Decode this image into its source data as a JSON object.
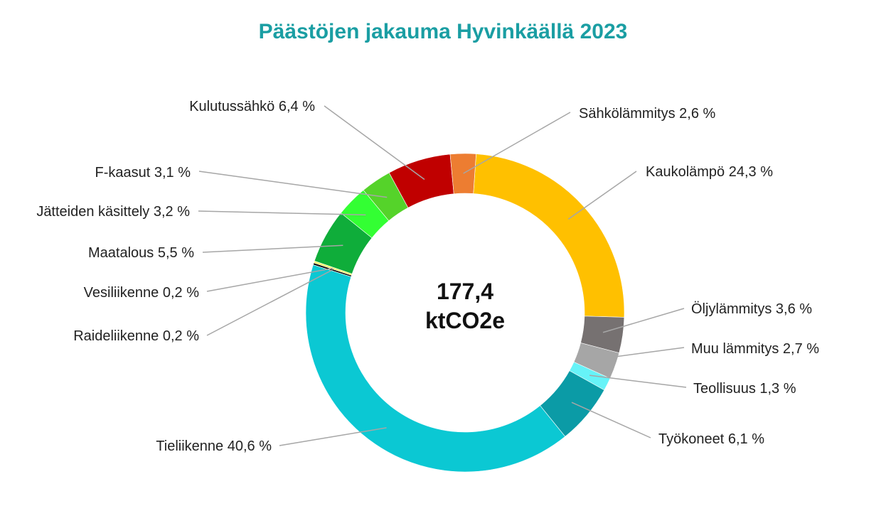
{
  "chart_data": {
    "type": "pie",
    "variant": "donut",
    "title": "Päästöjen jakauma Hyvinkäällä 2023",
    "center_text": [
      "177,4",
      "ktCO2e"
    ],
    "unit": "%",
    "slices": [
      {
        "name": "Kaukolämpö",
        "value": 24.3,
        "label": "Kaukolämpö 24,3 %",
        "color": "#ffc000"
      },
      {
        "name": "Öljylämmitys",
        "value": 3.6,
        "label": "Öljylämmitys 3,6 %",
        "color": "#767171"
      },
      {
        "name": "Muu lämmitys",
        "value": 2.7,
        "label": "Muu lämmitys 2,7 %",
        "color": "#a6a6a6"
      },
      {
        "name": "Teollisuus",
        "value": 1.3,
        "label": "Teollisuus 1,3 %",
        "color": "#66f3f8"
      },
      {
        "name": "Työkoneet",
        "value": 6.1,
        "label": "Työkoneet 6,1 %",
        "color": "#0b9ba6"
      },
      {
        "name": "Tieliikenne",
        "value": 40.6,
        "label": "Tieliikenne 40,6 %",
        "color": "#0bc8d3"
      },
      {
        "name": "Raideliikenne",
        "value": 0.2,
        "label": "Raideliikenne 0,2 %",
        "color": "#111111"
      },
      {
        "name": "Vesiliikenne",
        "value": 0.2,
        "label": "Vesiliikenne 0,2 %",
        "color": "#ffff66"
      },
      {
        "name": "Maatalous",
        "value": 5.5,
        "label": "Maatalous 5,5 %",
        "color": "#0fad3a"
      },
      {
        "name": "Jätteiden käsittely",
        "value": 3.2,
        "label": "Jätteiden käsittely 3,2 %",
        "color": "#33ff33"
      },
      {
        "name": "F-kaasut",
        "value": 3.1,
        "label": "F-kaasut 3,1 %",
        "color": "#55d32a"
      },
      {
        "name": "Kulutussähkö",
        "value": 6.4,
        "label": "Kulutussähkö 6,4 %",
        "color": "#c00000"
      },
      {
        "name": "Sähkölämmitys",
        "value": 2.6,
        "label": "Sähkölämmitys 2,6 %",
        "color": "#ed7d31"
      }
    ]
  }
}
